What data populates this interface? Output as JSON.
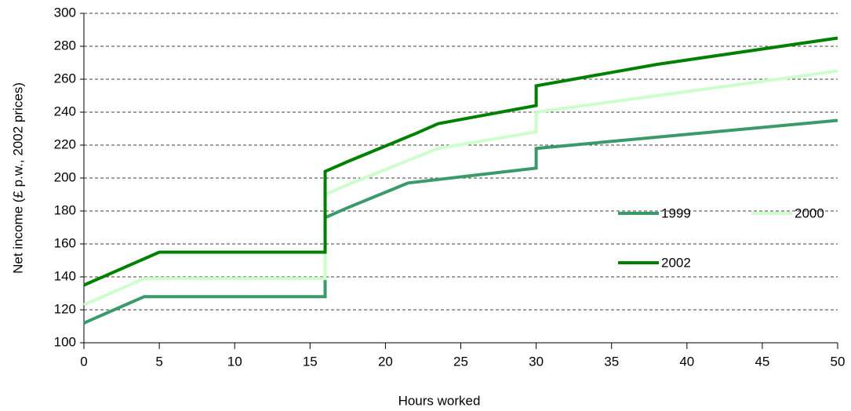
{
  "chart_data": {
    "type": "line",
    "x_label": "Hours worked",
    "y_label": "Net income (£ p.w., 2002 prices)",
    "xlim": [
      0,
      50
    ],
    "xticks": [
      0,
      5,
      10,
      15,
      20,
      25,
      30,
      35,
      40,
      45,
      50
    ],
    "ylim": [
      100,
      300
    ],
    "yticks": [
      100,
      120,
      140,
      160,
      180,
      200,
      220,
      240,
      260,
      280,
      300
    ],
    "grid": true,
    "series": [
      {
        "name": "1999",
        "color": "#3a9a6a",
        "x": [
          0,
          4,
          16,
          16,
          17.5,
          21.5,
          30,
          30,
          50
        ],
        "values": [
          112,
          128,
          128,
          176,
          182,
          197,
          206,
          218,
          235
        ]
      },
      {
        "name": "2000",
        "color": "#ccffcc",
        "x": [
          0,
          4,
          16,
          16,
          17.5,
          23.5,
          30,
          30,
          50
        ],
        "values": [
          123,
          139,
          139,
          190,
          196,
          218,
          228,
          240,
          265
        ]
      },
      {
        "name": "2002",
        "color": "#008000",
        "x": [
          0,
          5,
          16,
          16,
          17.5,
          22,
          23.5,
          30,
          30,
          38,
          50
        ],
        "values": [
          135,
          155,
          155,
          204,
          210,
          227,
          233,
          244,
          256,
          269,
          285
        ]
      }
    ]
  }
}
